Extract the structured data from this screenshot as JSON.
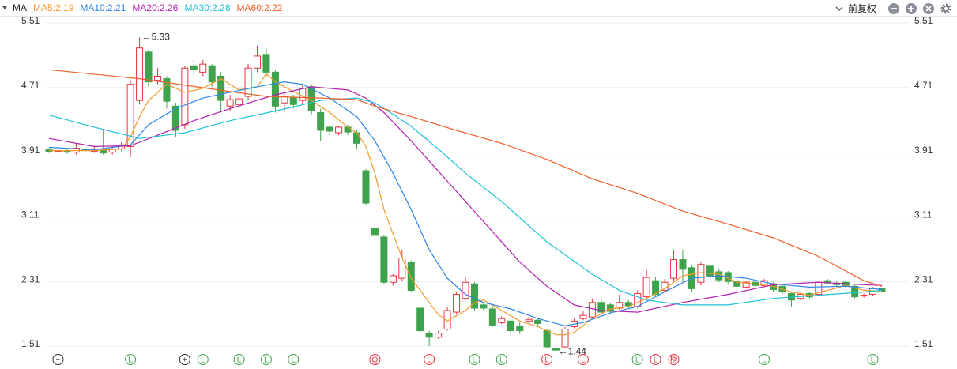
{
  "chart_data": {
    "type": "candlestick",
    "legend_title": "MA",
    "adjust_label": "前复权",
    "up_color": "#e8343f",
    "down_color": "#3ea34c",
    "ylim": [
      1.51,
      5.51
    ],
    "yticks": [
      1.51,
      2.31,
      3.11,
      3.91,
      4.71,
      5.51
    ],
    "grid": true,
    "ohlc": [
      [
        3.94,
        3.96,
        3.9,
        3.92
      ],
      [
        3.92,
        3.95,
        3.9,
        3.93
      ],
      [
        3.93,
        3.95,
        3.89,
        3.91
      ],
      [
        3.91,
        4.02,
        3.88,
        3.96
      ],
      [
        3.95,
        3.97,
        3.91,
        3.93
      ],
      [
        3.92,
        3.99,
        3.9,
        3.95
      ],
      [
        3.94,
        4.18,
        3.88,
        3.9
      ],
      [
        3.91,
        3.97,
        3.88,
        3.95
      ],
      [
        3.95,
        4.03,
        3.92,
        4.0
      ],
      [
        3.98,
        4.8,
        3.85,
        4.75
      ],
      [
        4.55,
        5.33,
        4.5,
        5.2
      ],
      [
        5.15,
        5.18,
        4.72,
        4.78
      ],
      [
        4.8,
        4.95,
        4.75,
        4.85
      ],
      [
        4.82,
        4.85,
        4.45,
        4.54
      ],
      [
        4.48,
        4.52,
        4.1,
        4.18
      ],
      [
        4.25,
        4.98,
        4.2,
        4.95
      ],
      [
        4.98,
        5.05,
        4.85,
        4.93
      ],
      [
        4.9,
        5.05,
        4.85,
        5.0
      ],
      [
        4.98,
        5.0,
        4.72,
        4.78
      ],
      [
        4.85,
        4.9,
        4.4,
        4.55
      ],
      [
        4.48,
        4.62,
        4.42,
        4.56
      ],
      [
        4.5,
        4.62,
        4.45,
        4.57
      ],
      [
        4.6,
        5.0,
        4.55,
        4.95
      ],
      [
        4.95,
        5.23,
        4.9,
        5.1
      ],
      [
        5.12,
        5.2,
        4.85,
        4.9
      ],
      [
        4.9,
        4.92,
        4.4,
        4.48
      ],
      [
        4.52,
        4.65,
        4.4,
        4.6
      ],
      [
        4.58,
        4.62,
        4.45,
        4.5
      ],
      [
        4.55,
        4.75,
        4.5,
        4.7
      ],
      [
        4.72,
        4.75,
        4.38,
        4.42
      ],
      [
        4.4,
        4.45,
        4.05,
        4.18
      ],
      [
        4.22,
        4.24,
        4.12,
        4.17
      ],
      [
        4.15,
        4.24,
        4.12,
        4.22
      ],
      [
        4.22,
        4.25,
        4.12,
        4.16
      ],
      [
        4.15,
        4.18,
        3.95,
        4.02
      ],
      [
        3.68,
        3.7,
        3.26,
        3.28
      ],
      [
        2.97,
        3.05,
        2.85,
        2.88
      ],
      [
        2.86,
        2.88,
        2.28,
        2.3
      ],
      [
        2.3,
        2.4,
        2.26,
        2.38
      ],
      [
        2.35,
        2.7,
        2.32,
        2.6
      ],
      [
        2.55,
        2.57,
        2.18,
        2.2
      ],
      [
        1.98,
        2.0,
        1.68,
        1.7
      ],
      [
        1.67,
        1.7,
        1.51,
        1.62
      ],
      [
        1.62,
        1.7,
        1.6,
        1.67
      ],
      [
        1.72,
        2.0,
        1.7,
        1.95
      ],
      [
        1.93,
        2.18,
        1.9,
        2.15
      ],
      [
        2.1,
        2.36,
        2.08,
        2.3
      ],
      [
        2.28,
        2.3,
        1.95,
        1.98
      ],
      [
        2.02,
        2.05,
        1.95,
        1.98
      ],
      [
        1.97,
        2.0,
        1.75,
        1.77
      ],
      [
        1.8,
        1.88,
        1.78,
        1.85
      ],
      [
        1.82,
        1.85,
        1.66,
        1.7
      ],
      [
        1.76,
        1.8,
        1.66,
        1.7
      ],
      [
        1.82,
        1.87,
        1.79,
        1.84
      ],
      [
        1.83,
        1.85,
        1.76,
        1.79
      ],
      [
        1.7,
        1.72,
        1.48,
        1.5
      ],
      [
        1.48,
        1.5,
        1.44,
        1.46
      ],
      [
        1.5,
        1.75,
        1.48,
        1.72
      ],
      [
        1.75,
        1.85,
        1.73,
        1.82
      ],
      [
        1.85,
        1.95,
        1.83,
        1.89
      ],
      [
        1.87,
        2.1,
        1.85,
        2.05
      ],
      [
        2.05,
        2.08,
        1.9,
        1.93
      ],
      [
        2.02,
        2.05,
        1.9,
        1.94
      ],
      [
        1.98,
        2.15,
        1.96,
        2.05
      ],
      [
        2.05,
        2.08,
        1.98,
        2.01
      ],
      [
        2.0,
        2.2,
        1.98,
        2.16
      ],
      [
        2.12,
        2.45,
        2.1,
        2.36
      ],
      [
        2.32,
        2.36,
        2.12,
        2.15
      ],
      [
        2.2,
        2.34,
        2.18,
        2.3
      ],
      [
        2.35,
        2.7,
        2.32,
        2.58
      ],
      [
        2.58,
        2.7,
        2.3,
        2.46
      ],
      [
        2.48,
        2.52,
        2.18,
        2.22
      ],
      [
        2.3,
        2.55,
        2.26,
        2.52
      ],
      [
        2.5,
        2.53,
        2.35,
        2.38
      ],
      [
        2.43,
        2.46,
        2.3,
        2.33
      ],
      [
        2.42,
        2.44,
        2.28,
        2.31
      ],
      [
        2.31,
        2.34,
        2.22,
        2.25
      ],
      [
        2.24,
        2.32,
        2.22,
        2.3
      ],
      [
        2.3,
        2.32,
        2.22,
        2.26
      ],
      [
        2.26,
        2.34,
        2.24,
        2.32
      ],
      [
        2.28,
        2.3,
        2.18,
        2.21
      ],
      [
        2.25,
        2.27,
        2.15,
        2.18
      ],
      [
        2.16,
        2.18,
        2.0,
        2.08
      ],
      [
        2.1,
        2.17,
        2.08,
        2.15
      ],
      [
        2.16,
        2.18,
        2.1,
        2.12
      ],
      [
        2.15,
        2.32,
        2.13,
        2.3
      ],
      [
        2.32,
        2.34,
        2.27,
        2.29
      ],
      [
        2.29,
        2.31,
        2.25,
        2.27
      ],
      [
        2.3,
        2.32,
        2.23,
        2.25
      ],
      [
        2.25,
        2.27,
        2.1,
        2.12
      ],
      [
        2.13,
        2.16,
        2.11,
        2.14
      ],
      [
        2.15,
        2.24,
        2.13,
        2.22
      ],
      [
        2.22,
        2.23,
        2.17,
        2.19
      ]
    ],
    "series": [
      {
        "name": "MA5:2.19",
        "color": "#f39a2b",
        "x": [
          0,
          5,
          8,
          9,
          10,
          11,
          13,
          15,
          17,
          19,
          21,
          23,
          24,
          25,
          27,
          29,
          31,
          33,
          34,
          35,
          36,
          37,
          38,
          39,
          40,
          41,
          42,
          43,
          44,
          46,
          47,
          48,
          50,
          52,
          54,
          55,
          56,
          57,
          58,
          60,
          62,
          64,
          66,
          68,
          70,
          72,
          74,
          76,
          78,
          80,
          82,
          84,
          86,
          88,
          90,
          92
        ],
        "values": [
          3.93,
          3.93,
          3.95,
          4.1,
          4.35,
          4.55,
          4.75,
          4.65,
          4.7,
          4.82,
          4.68,
          4.72,
          4.88,
          4.78,
          4.66,
          4.55,
          4.4,
          4.22,
          4.15,
          3.98,
          3.65,
          3.2,
          2.9,
          2.6,
          2.35,
          2.2,
          2.05,
          1.9,
          1.82,
          1.95,
          2.05,
          2.08,
          1.95,
          1.82,
          1.75,
          1.7,
          1.65,
          1.65,
          1.68,
          1.85,
          1.97,
          2.0,
          2.1,
          2.22,
          2.38,
          2.42,
          2.4,
          2.3,
          2.28,
          2.25,
          2.18,
          2.14,
          2.2,
          2.26,
          2.2,
          2.19
        ]
      },
      {
        "name": "MA10:2.21",
        "color": "#2e86e8",
        "x": [
          0,
          5,
          9,
          11,
          14,
          17,
          20,
          23,
          26,
          28,
          31,
          34,
          36,
          38,
          40,
          42,
          44,
          46,
          48,
          51,
          54,
          57,
          59,
          62,
          65,
          68,
          71,
          74,
          77,
          80,
          84,
          88,
          92
        ],
        "values": [
          3.97,
          3.94,
          4.0,
          4.25,
          4.45,
          4.58,
          4.65,
          4.72,
          4.78,
          4.75,
          4.58,
          4.35,
          4.05,
          3.65,
          3.2,
          2.7,
          2.35,
          2.15,
          2.05,
          1.97,
          1.85,
          1.76,
          1.8,
          1.92,
          2.0,
          2.18,
          2.35,
          2.38,
          2.35,
          2.28,
          2.24,
          2.25,
          2.21
        ]
      },
      {
        "name": "MA20:2.26",
        "color": "#b51fb3",
        "x": [
          0,
          5,
          9,
          12,
          16,
          20,
          25,
          29,
          33,
          35,
          37,
          40,
          44,
          48,
          52,
          55,
          58,
          61,
          65,
          70,
          75,
          80,
          85,
          90,
          92
        ],
        "values": [
          4.08,
          3.98,
          3.99,
          4.12,
          4.3,
          4.45,
          4.62,
          4.72,
          4.68,
          4.58,
          4.4,
          4.05,
          3.55,
          3.05,
          2.55,
          2.25,
          2.02,
          1.95,
          1.93,
          2.05,
          2.15,
          2.27,
          2.3,
          2.27,
          2.26
        ]
      },
      {
        "name": "MA30:2.28",
        "color": "#1fc2d8",
        "x": [
          0,
          5,
          10,
          15,
          20,
          25,
          30,
          34,
          36,
          38,
          40,
          43,
          46,
          50,
          55,
          60,
          63,
          66,
          70,
          75,
          80,
          85,
          90,
          92
        ],
        "values": [
          4.37,
          4.22,
          4.08,
          4.15,
          4.3,
          4.42,
          4.55,
          4.58,
          4.52,
          4.38,
          4.23,
          3.95,
          3.65,
          3.3,
          2.8,
          2.4,
          2.2,
          2.08,
          2.02,
          2.02,
          2.1,
          2.14,
          2.18,
          2.2
        ]
      },
      {
        "name": "MA60:2.22",
        "color": "#f0602a",
        "x": [
          0,
          10,
          20,
          24,
          30,
          34,
          36,
          40,
          45,
          50,
          55,
          60,
          65,
          70,
          75,
          80,
          85,
          90,
          92
        ],
        "values": [
          4.93,
          4.82,
          4.66,
          4.6,
          4.58,
          4.56,
          4.48,
          4.35,
          4.18,
          4.02,
          3.82,
          3.58,
          3.4,
          3.18,
          3.02,
          2.85,
          2.62,
          2.32,
          2.25
        ]
      }
    ],
    "annotations": [
      {
        "text": "←5.33",
        "index": 10,
        "value": 5.33
      },
      {
        "text": "←1.44",
        "index": 56,
        "value": 1.44
      }
    ],
    "markers": [
      {
        "index": 1,
        "label": "+",
        "color": "#333333"
      },
      {
        "index": 9,
        "label": "L",
        "color": "#3ea34c"
      },
      {
        "index": 15,
        "label": "+",
        "color": "#333333"
      },
      {
        "index": 17,
        "label": "L",
        "color": "#3ea34c"
      },
      {
        "index": 21,
        "label": "L",
        "color": "#3ea34c"
      },
      {
        "index": 24,
        "label": "L",
        "color": "#3ea34c"
      },
      {
        "index": 27,
        "label": "L",
        "color": "#3ea34c"
      },
      {
        "index": 36,
        "label": "Q",
        "color": "#e8343f"
      },
      {
        "index": 42,
        "label": "L",
        "color": "#e8343f"
      },
      {
        "index": 47,
        "label": "L",
        "color": "#3ea34c"
      },
      {
        "index": 50,
        "label": "L",
        "color": "#3ea34c"
      },
      {
        "index": 55,
        "label": "L",
        "color": "#e8343f"
      },
      {
        "index": 59,
        "label": "L",
        "color": "#e8343f"
      },
      {
        "index": 65,
        "label": "L",
        "color": "#3ea34c"
      },
      {
        "index": 67,
        "label": "L",
        "color": "#e8343f"
      },
      {
        "index": 69,
        "label": "榜",
        "color": "#e8343f"
      },
      {
        "index": 79,
        "label": "L",
        "color": "#3ea34c"
      },
      {
        "index": 91,
        "label": "L",
        "color": "#3ea34c"
      }
    ]
  }
}
